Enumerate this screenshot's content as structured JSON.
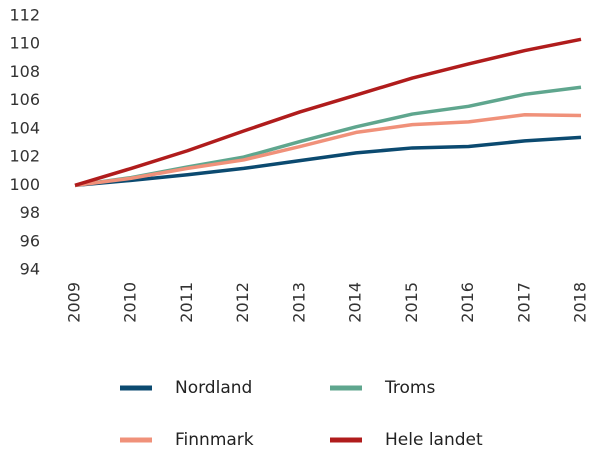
{
  "chart_data": {
    "type": "line",
    "categories": [
      "2009",
      "2010",
      "2011",
      "2012",
      "2013",
      "2014",
      "2015",
      "2016",
      "2017",
      "2018"
    ],
    "series": [
      {
        "name": "Nordland",
        "color": "#0b4a70",
        "values": [
          100,
          100.35,
          100.75,
          101.2,
          101.75,
          102.3,
          102.65,
          102.75,
          103.15,
          103.4
        ]
      },
      {
        "name": "Troms",
        "color": "#5fa68e",
        "values": [
          100,
          100.55,
          101.3,
          102.0,
          103.1,
          104.15,
          105.05,
          105.6,
          106.45,
          106.95
        ]
      },
      {
        "name": "Finnmark",
        "color": "#f0917a",
        "values": [
          100,
          100.5,
          101.2,
          101.8,
          102.75,
          103.75,
          104.3,
          104.5,
          105.0,
          104.95
        ]
      },
      {
        "name": "Hele landet",
        "color": "#b01c1c",
        "values": [
          100,
          101.2,
          102.45,
          103.85,
          105.2,
          106.4,
          107.6,
          108.6,
          109.55,
          110.35
        ]
      }
    ],
    "ylim": [
      94,
      112
    ],
    "yticks": [
      94,
      96,
      98,
      100,
      102,
      104,
      106,
      108,
      110,
      112
    ]
  }
}
